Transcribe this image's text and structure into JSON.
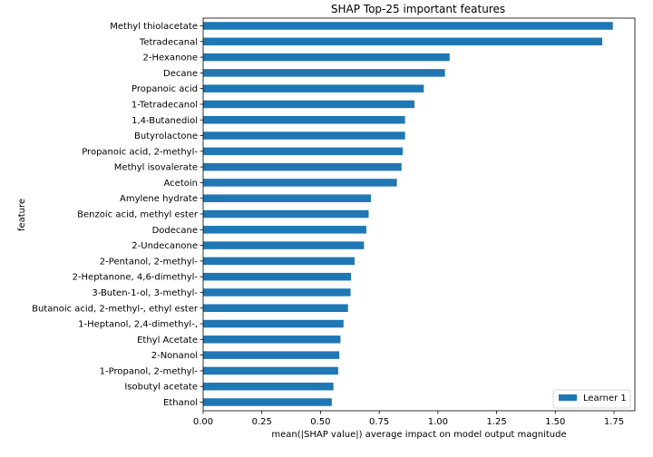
{
  "chart_data": {
    "type": "bar",
    "orientation": "horizontal",
    "title": "SHAP Top-25 important features",
    "xlabel": "mean(|SHAP value|) average impact on model output magnitude",
    "ylabel": "feature",
    "xlim": [
      0,
      1.85
    ],
    "xticks": [
      0.0,
      0.25,
      0.5,
      0.75,
      1.0,
      1.25,
      1.5,
      1.75
    ],
    "xtick_labels": [
      "0.00",
      "0.25",
      "0.50",
      "0.75",
      "1.00",
      "1.25",
      "1.50",
      "1.75"
    ],
    "grid": false,
    "legend_position": "bottom-right",
    "bar_color": "#1f77b4",
    "categories": [
      "Methyl thiolacetate",
      "Tetradecanal",
      "2-Hexanone",
      "Decane",
      "Propanoic acid",
      "1-Tetradecanol",
      "1,4-Butanediol",
      "Butyrolactone",
      "Propanoic acid, 2-methyl-",
      "Methyl isovalerate",
      "Acetoin",
      "Amylene hydrate",
      "Benzoic acid, methyl ester",
      "Dodecane",
      "2-Undecanone",
      "2-Pentanol, 2-methyl-",
      "2-Heptanone, 4,6-dimethyl-",
      "3-Buten-1-ol, 3-methyl-",
      "Butanoic acid, 2-methyl-, ethyl ester",
      "1-Heptanol, 2,4-dimethyl-,",
      "Ethyl Acetate",
      "2-Nonanol",
      "1-Propanol, 2-methyl-",
      "Isobutyl acetate",
      "Ethanol"
    ],
    "series": [
      {
        "name": "Learner 1",
        "values": [
          1.745,
          1.7,
          1.05,
          1.03,
          0.94,
          0.9,
          0.86,
          0.86,
          0.85,
          0.845,
          0.825,
          0.715,
          0.705,
          0.695,
          0.685,
          0.645,
          0.63,
          0.628,
          0.617,
          0.598,
          0.585,
          0.58,
          0.575,
          0.555,
          0.548
        ]
      }
    ]
  }
}
